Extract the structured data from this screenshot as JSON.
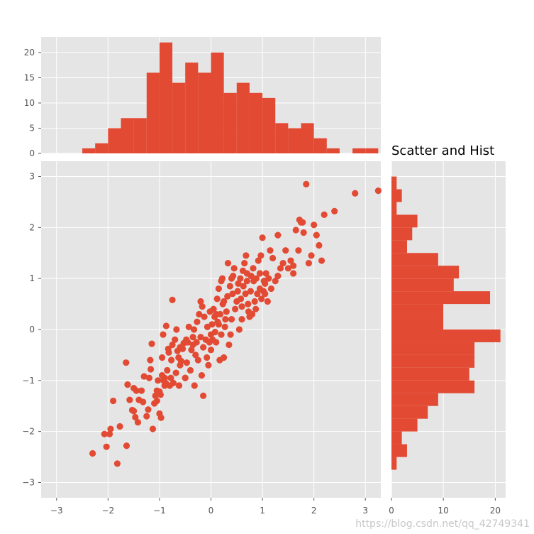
{
  "chart_data": [
    {
      "type": "scatter",
      "title": "",
      "xlabel": "",
      "ylabel": "",
      "xlim": [
        -3.3,
        3.3
      ],
      "ylim": [
        -3.3,
        3.3
      ],
      "xticks": [
        "−3",
        "−2",
        "−1",
        "0",
        "1",
        "2",
        "3"
      ],
      "yticks": [
        "−3",
        "−2",
        "−1",
        "0",
        "1",
        "2",
        "3"
      ],
      "grid": true,
      "points": [
        [
          -2.3,
          -2.43
        ],
        [
          -2.07,
          -2.05
        ],
        [
          -2.03,
          -2.3
        ],
        [
          -1.97,
          -2.05
        ],
        [
          -1.95,
          -1.95
        ],
        [
          -1.9,
          -1.4
        ],
        [
          -1.82,
          -2.63
        ],
        [
          -1.77,
          -1.9
        ],
        [
          -1.65,
          -0.65
        ],
        [
          -1.62,
          -1.08
        ],
        [
          -1.64,
          -2.28
        ],
        [
          -1.58,
          -1.38
        ],
        [
          -1.53,
          -1.58
        ],
        [
          -1.5,
          -1.6
        ],
        [
          -1.47,
          -1.72
        ],
        [
          -1.45,
          -1.2
        ],
        [
          -1.42,
          -1.82
        ],
        [
          -1.4,
          -1.38
        ],
        [
          -1.35,
          -1.2
        ],
        [
          -1.32,
          -1.42
        ],
        [
          -1.3,
          -0.92
        ],
        [
          -1.25,
          -1.7
        ],
        [
          -1.22,
          -1.57
        ],
        [
          -1.18,
          -0.6
        ],
        [
          -1.17,
          -0.78
        ],
        [
          -1.15,
          -0.28
        ],
        [
          -1.13,
          -1.95
        ],
        [
          -1.1,
          -1.45
        ],
        [
          -1.08,
          -1.3
        ],
        [
          -1.05,
          -1.4
        ],
        [
          -1.03,
          -1.0
        ],
        [
          -1.0,
          -1.65
        ],
        [
          -1.0,
          -1.22
        ],
        [
          -0.98,
          -1.28
        ],
        [
          -0.97,
          -1.73
        ],
        [
          -0.95,
          -0.55
        ],
        [
          -0.95,
          -0.9
        ],
        [
          -0.93,
          -0.1
        ],
        [
          -0.92,
          -1.0
        ],
        [
          -0.9,
          -1.1
        ],
        [
          -0.88,
          -1.05
        ],
        [
          -0.87,
          0.07
        ],
        [
          -0.85,
          -0.8
        ],
        [
          -0.83,
          -0.38
        ],
        [
          -0.82,
          -0.45
        ],
        [
          -0.8,
          -1.1
        ],
        [
          -0.78,
          -0.95
        ],
        [
          -0.77,
          -0.6
        ],
        [
          -0.75,
          -0.3
        ],
        [
          -0.73,
          -1.05
        ],
        [
          -0.7,
          -0.2
        ],
        [
          -0.68,
          -0.85
        ],
        [
          -0.67,
          0.0
        ],
        [
          -0.65,
          -0.42
        ],
        [
          -0.63,
          -0.55
        ],
        [
          -0.62,
          -1.1
        ],
        [
          -0.6,
          -0.35
        ],
        [
          -0.58,
          -0.62
        ],
        [
          -0.55,
          -0.38
        ],
        [
          -0.53,
          -0.27
        ],
        [
          -0.5,
          -0.95
        ],
        [
          -0.48,
          -0.2
        ],
        [
          -0.47,
          -0.65
        ],
        [
          -0.45,
          -0.25
        ],
        [
          -0.43,
          0.05
        ],
        [
          -0.4,
          -0.8
        ],
        [
          -0.38,
          -0.4
        ],
        [
          -0.35,
          -0.3
        ],
        [
          -0.33,
          0.0
        ],
        [
          -0.32,
          -1.1
        ],
        [
          -0.3,
          -0.5
        ],
        [
          -0.28,
          -0.25
        ],
        [
          -0.27,
          0.15
        ],
        [
          -0.25,
          -0.6
        ],
        [
          -0.23,
          0.3
        ],
        [
          -0.2,
          -0.15
        ],
        [
          -0.18,
          -0.9
        ],
        [
          -0.17,
          0.45
        ],
        [
          -0.15,
          -0.35
        ],
        [
          -0.13,
          0.25
        ],
        [
          -0.1,
          -0.2
        ],
        [
          -0.08,
          -0.55
        ],
        [
          -0.07,
          0.05
        ],
        [
          -0.05,
          -0.7
        ],
        [
          -0.03,
          -0.25
        ],
        [
          -0.02,
          0.35
        ],
        [
          0.0,
          -0.1
        ],
        [
          0.0,
          -0.4
        ],
        [
          0.02,
          0.1
        ],
        [
          0.03,
          -0.2
        ],
        [
          0.05,
          0.4
        ],
        [
          0.07,
          0.25
        ],
        [
          0.08,
          -0.05
        ],
        [
          0.1,
          -0.25
        ],
        [
          0.12,
          0.6
        ],
        [
          0.13,
          0.15
        ],
        [
          0.15,
          0.8
        ],
        [
          0.17,
          -0.6
        ],
        [
          0.18,
          0.3
        ],
        [
          0.2,
          -0.1
        ],
        [
          0.22,
          1.0
        ],
        [
          0.23,
          0.5
        ],
        [
          0.25,
          -0.55
        ],
        [
          0.27,
          0.05
        ],
        [
          0.28,
          0.2
        ],
        [
          0.3,
          0.35
        ],
        [
          0.32,
          0.65
        ],
        [
          0.33,
          1.3
        ],
        [
          0.35,
          -0.3
        ],
        [
          0.37,
          0.85
        ],
        [
          0.38,
          -0.1
        ],
        [
          0.4,
          0.2
        ],
        [
          0.42,
          0.7
        ],
        [
          0.43,
          1.05
        ],
        [
          0.45,
          1.2
        ],
        [
          0.47,
          0.4
        ],
        [
          0.5,
          0.55
        ],
        [
          0.52,
          0.75
        ],
        [
          0.53,
          0.9
        ],
        [
          0.55,
          0.0
        ],
        [
          0.57,
          1.0
        ],
        [
          0.58,
          0.6
        ],
        [
          0.6,
          0.45
        ],
        [
          0.62,
          1.15
        ],
        [
          0.63,
          0.85
        ],
        [
          0.65,
          1.3
        ],
        [
          0.67,
          0.7
        ],
        [
          0.68,
          1.45
        ],
        [
          0.7,
          0.95
        ],
        [
          0.72,
          0.5
        ],
        [
          0.73,
          0.35
        ],
        [
          0.75,
          0.25
        ],
        [
          0.77,
          0.75
        ],
        [
          0.78,
          1.05
        ],
        [
          0.8,
          0.3
        ],
        [
          0.82,
          1.2
        ],
        [
          0.83,
          0.95
        ],
        [
          0.85,
          0.55
        ],
        [
          0.87,
          0.4
        ],
        [
          0.88,
          1.0
        ],
        [
          0.9,
          0.7
        ],
        [
          0.92,
          1.35
        ],
        [
          0.95,
          0.8
        ],
        [
          0.97,
          1.45
        ],
        [
          0.98,
          0.6
        ],
        [
          1.0,
          1.8
        ],
        [
          1.02,
          0.75
        ],
        [
          1.03,
          0.95
        ],
        [
          1.05,
          0.9
        ],
        [
          1.07,
          1.1
        ],
        [
          1.1,
          0.55
        ],
        [
          1.12,
          1.0
        ],
        [
          1.15,
          1.55
        ],
        [
          1.17,
          0.8
        ],
        [
          1.2,
          1.4
        ],
        [
          1.25,
          0.95
        ],
        [
          1.3,
          1.05
        ],
        [
          1.35,
          1.2
        ],
        [
          1.4,
          1.3
        ],
        [
          1.45,
          1.55
        ],
        [
          1.5,
          1.2
        ],
        [
          1.55,
          1.35
        ],
        [
          1.6,
          1.1
        ],
        [
          1.65,
          1.95
        ],
        [
          1.7,
          1.55
        ],
        [
          1.75,
          2.1
        ],
        [
          1.8,
          1.9
        ],
        [
          1.85,
          2.85
        ],
        [
          1.9,
          1.3
        ],
        [
          1.95,
          1.45
        ],
        [
          2.0,
          2.05
        ],
        [
          2.05,
          1.85
        ],
        [
          2.1,
          1.65
        ],
        [
          2.15,
          1.35
        ],
        [
          2.2,
          2.25
        ],
        [
          2.4,
          2.32
        ],
        [
          2.8,
          2.67
        ],
        [
          3.25,
          2.72
        ],
        [
          1.72,
          2.15
        ],
        [
          1.78,
          2.1
        ],
        [
          1.05,
          0.7
        ],
        [
          -0.9,
          -0.95
        ],
        [
          -0.2,
          0.55
        ],
        [
          -1.2,
          -0.95
        ],
        [
          0.6,
          0.2
        ],
        [
          -0.6,
          -0.7
        ],
        [
          0.15,
          0.1
        ],
        [
          -0.35,
          -0.15
        ],
        [
          0.4,
          1.0
        ],
        [
          1.3,
          1.85
        ],
        [
          0.25,
          0.55
        ],
        [
          -1.05,
          -1.2
        ],
        [
          0.1,
          0.3
        ],
        [
          -0.5,
          -0.95
        ],
        [
          0.7,
          1.1
        ],
        [
          -1.5,
          -1.15
        ],
        [
          0.95,
          1.1
        ],
        [
          1.6,
          1.25
        ],
        [
          -0.15,
          -1.3
        ],
        [
          -0.75,
          0.58
        ],
        [
          0.2,
          0.95
        ]
      ]
    },
    {
      "type": "bar",
      "title": "",
      "xlabel": "",
      "ylabel": "",
      "ylim": [
        0,
        23.1
      ],
      "yticks": [
        "0",
        "5",
        "10",
        "15",
        "20"
      ],
      "grid": true,
      "bin_edges": [
        -2.5,
        -2.25,
        -2.0,
        -1.75,
        -1.5,
        -1.25,
        -1.0,
        -0.75,
        -0.5,
        -0.25,
        0.0,
        0.25,
        0.5,
        0.75,
        1.0,
        1.25,
        1.5,
        1.75,
        2.0,
        2.25,
        2.5,
        2.75,
        3.0,
        3.25
      ],
      "values": [
        1,
        2,
        5,
        7,
        7,
        16,
        22,
        14,
        18,
        16,
        20,
        12,
        14,
        12,
        11,
        6,
        5,
        6,
        3,
        1,
        0,
        1,
        1
      ]
    },
    {
      "type": "bar",
      "orientation": "horizontal",
      "title": "Scatter and Hist",
      "xlabel": "",
      "ylabel": "",
      "xlim": [
        0,
        22
      ],
      "xticks": [
        "0",
        "10",
        "20"
      ],
      "grid": true,
      "bin_edges": [
        -2.75,
        -2.5,
        -2.25,
        -2.0,
        -1.75,
        -1.5,
        -1.25,
        -1.0,
        -0.75,
        -0.5,
        -0.25,
        0.0,
        0.25,
        0.5,
        0.75,
        1.0,
        1.25,
        1.5,
        1.75,
        2.0,
        2.25,
        2.5,
        2.75,
        3.0
      ],
      "values": [
        1,
        3,
        2,
        5,
        7,
        9,
        16,
        15,
        16,
        16,
        21,
        10,
        10,
        19,
        12,
        13,
        9,
        3,
        4,
        5,
        1,
        2,
        1
      ]
    }
  ],
  "colors": {
    "bar": "#e24a33",
    "panel_bg": "#e5e5e5",
    "grid": "#ffffff"
  },
  "watermark": "https://blog.csdn.net/qq_42749341"
}
